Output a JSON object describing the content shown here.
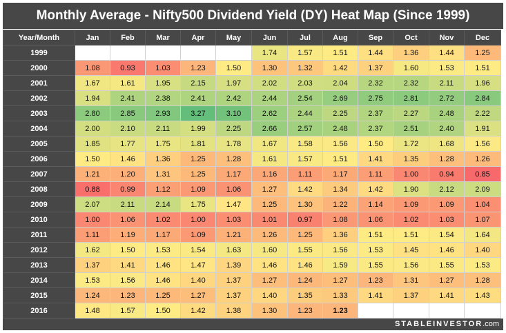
{
  "title": "Monthly Average - Nifty500 Dividend Yield (DY) Heat Map (Since 1999)",
  "brand": {
    "name": "STABLEINVESTOR",
    "suffix": ".com"
  },
  "chart_data": {
    "type": "heatmap",
    "corner_label": "Year/Month",
    "months": [
      "Jan",
      "Feb",
      "Mar",
      "Apr",
      "May",
      "Jun",
      "Jul",
      "Aug",
      "Sep",
      "Oct",
      "Nov",
      "Dec"
    ],
    "rows": [
      {
        "year": "1999",
        "values": [
          null,
          null,
          null,
          null,
          null,
          "1.74",
          "1.57",
          "1.51",
          "1.44",
          "1.36",
          "1.44",
          "1.25"
        ]
      },
      {
        "year": "2000",
        "values": [
          "1.08",
          "0.93",
          "1.03",
          "1.23",
          "1.50",
          "1.30",
          "1.32",
          "1.42",
          "1.37",
          "1.60",
          "1.53",
          "1.51"
        ]
      },
      {
        "year": "2001",
        "values": [
          "1.67",
          "1.61",
          "1.95",
          "2.15",
          "1.97",
          "2.02",
          "2.03",
          "2.04",
          "2.32",
          "2.32",
          "2.11",
          "1.96"
        ]
      },
      {
        "year": "2002",
        "values": [
          "1.94",
          "2.41",
          "2.38",
          "2.41",
          "2.42",
          "2.44",
          "2.54",
          "2.69",
          "2.75",
          "2.81",
          "2.72",
          "2.84"
        ]
      },
      {
        "year": "2003",
        "values": [
          "2.80",
          "2.85",
          "2.93",
          "3.27",
          "3.10",
          "2.62",
          "2.44",
          "2.25",
          "2.37",
          "2.27",
          "2.48",
          "2.22"
        ]
      },
      {
        "year": "2004",
        "values": [
          "2.00",
          "2.10",
          "2.11",
          "1.99",
          "2.25",
          "2.66",
          "2.57",
          "2.48",
          "2.37",
          "2.51",
          "2.40",
          "1.91"
        ]
      },
      {
        "year": "2005",
        "values": [
          "1.85",
          "1.77",
          "1.75",
          "1.81",
          "1.78",
          "1.67",
          "1.58",
          "1.56",
          "1.50",
          "1.72",
          "1.68",
          "1.56"
        ]
      },
      {
        "year": "2006",
        "values": [
          "1.50",
          "1.46",
          "1.36",
          "1.25",
          "1.28",
          "1.61",
          "1.57",
          "1.51",
          "1.41",
          "1.35",
          "1.28",
          "1.26"
        ]
      },
      {
        "year": "2007",
        "values": [
          "1.21",
          "1.20",
          "1.31",
          "1.25",
          "1.17",
          "1.16",
          "1.11",
          "1.17",
          "1.11",
          "1.00",
          "0.94",
          "0.85"
        ]
      },
      {
        "year": "2008",
        "values": [
          "0.88",
          "0.99",
          "1.12",
          "1.09",
          "1.06",
          "1.27",
          "1.42",
          "1.34",
          "1.42",
          "1.90",
          "2.12",
          "2.09"
        ]
      },
      {
        "year": "2009",
        "values": [
          "2.07",
          "2.11",
          "2.14",
          "1.75",
          "1.47",
          "1.25",
          "1.30",
          "1.22",
          "1.14",
          "1.09",
          "1.09",
          "1.04"
        ]
      },
      {
        "year": "2010",
        "values": [
          "1.00",
          "1.06",
          "1.02",
          "1.00",
          "1.03",
          "1.01",
          "0.97",
          "1.08",
          "1.06",
          "1.02",
          "1.03",
          "1.07"
        ]
      },
      {
        "year": "2011",
        "values": [
          "1.11",
          "1.19",
          "1.17",
          "1.09",
          "1.21",
          "1.26",
          "1.25",
          "1.36",
          "1.51",
          "1.51",
          "1.54",
          "1.64"
        ]
      },
      {
        "year": "2012",
        "values": [
          "1.62",
          "1.50",
          "1.53",
          "1.54",
          "1.63",
          "1.60",
          "1.55",
          "1.56",
          "1.53",
          "1.45",
          "1.46",
          "1.40"
        ]
      },
      {
        "year": "2013",
        "values": [
          "1.37",
          "1.41",
          "1.46",
          "1.47",
          "1.39",
          "1.46",
          "1.46",
          "1.59",
          "1.55",
          "1.56",
          "1.55",
          "1.53"
        ]
      },
      {
        "year": "2014",
        "values": [
          "1.53",
          "1.56",
          "1.46",
          "1.40",
          "1.37",
          "1.27",
          "1.24",
          "1.27",
          "1.23",
          "1.31",
          "1.27",
          "1.28"
        ]
      },
      {
        "year": "2015",
        "values": [
          "1.24",
          "1.23",
          "1.25",
          "1.27",
          "1.37",
          "1.40",
          "1.35",
          "1.33",
          "1.41",
          "1.37",
          "1.41",
          "1.43"
        ]
      },
      {
        "year": "2016",
        "values": [
          "1.48",
          "1.57",
          "1.50",
          "1.42",
          "1.38",
          "1.30",
          "1.23",
          "1.23",
          null,
          null,
          null,
          null
        ]
      }
    ],
    "emphasized_cell": {
      "year": "2016",
      "month": "Aug"
    },
    "color_scale": {
      "low": "#f8696b",
      "mid": "#ffeb84",
      "high": "#63be7b",
      "min": 0.85,
      "mid_value": 1.5,
      "max": 3.27
    }
  }
}
